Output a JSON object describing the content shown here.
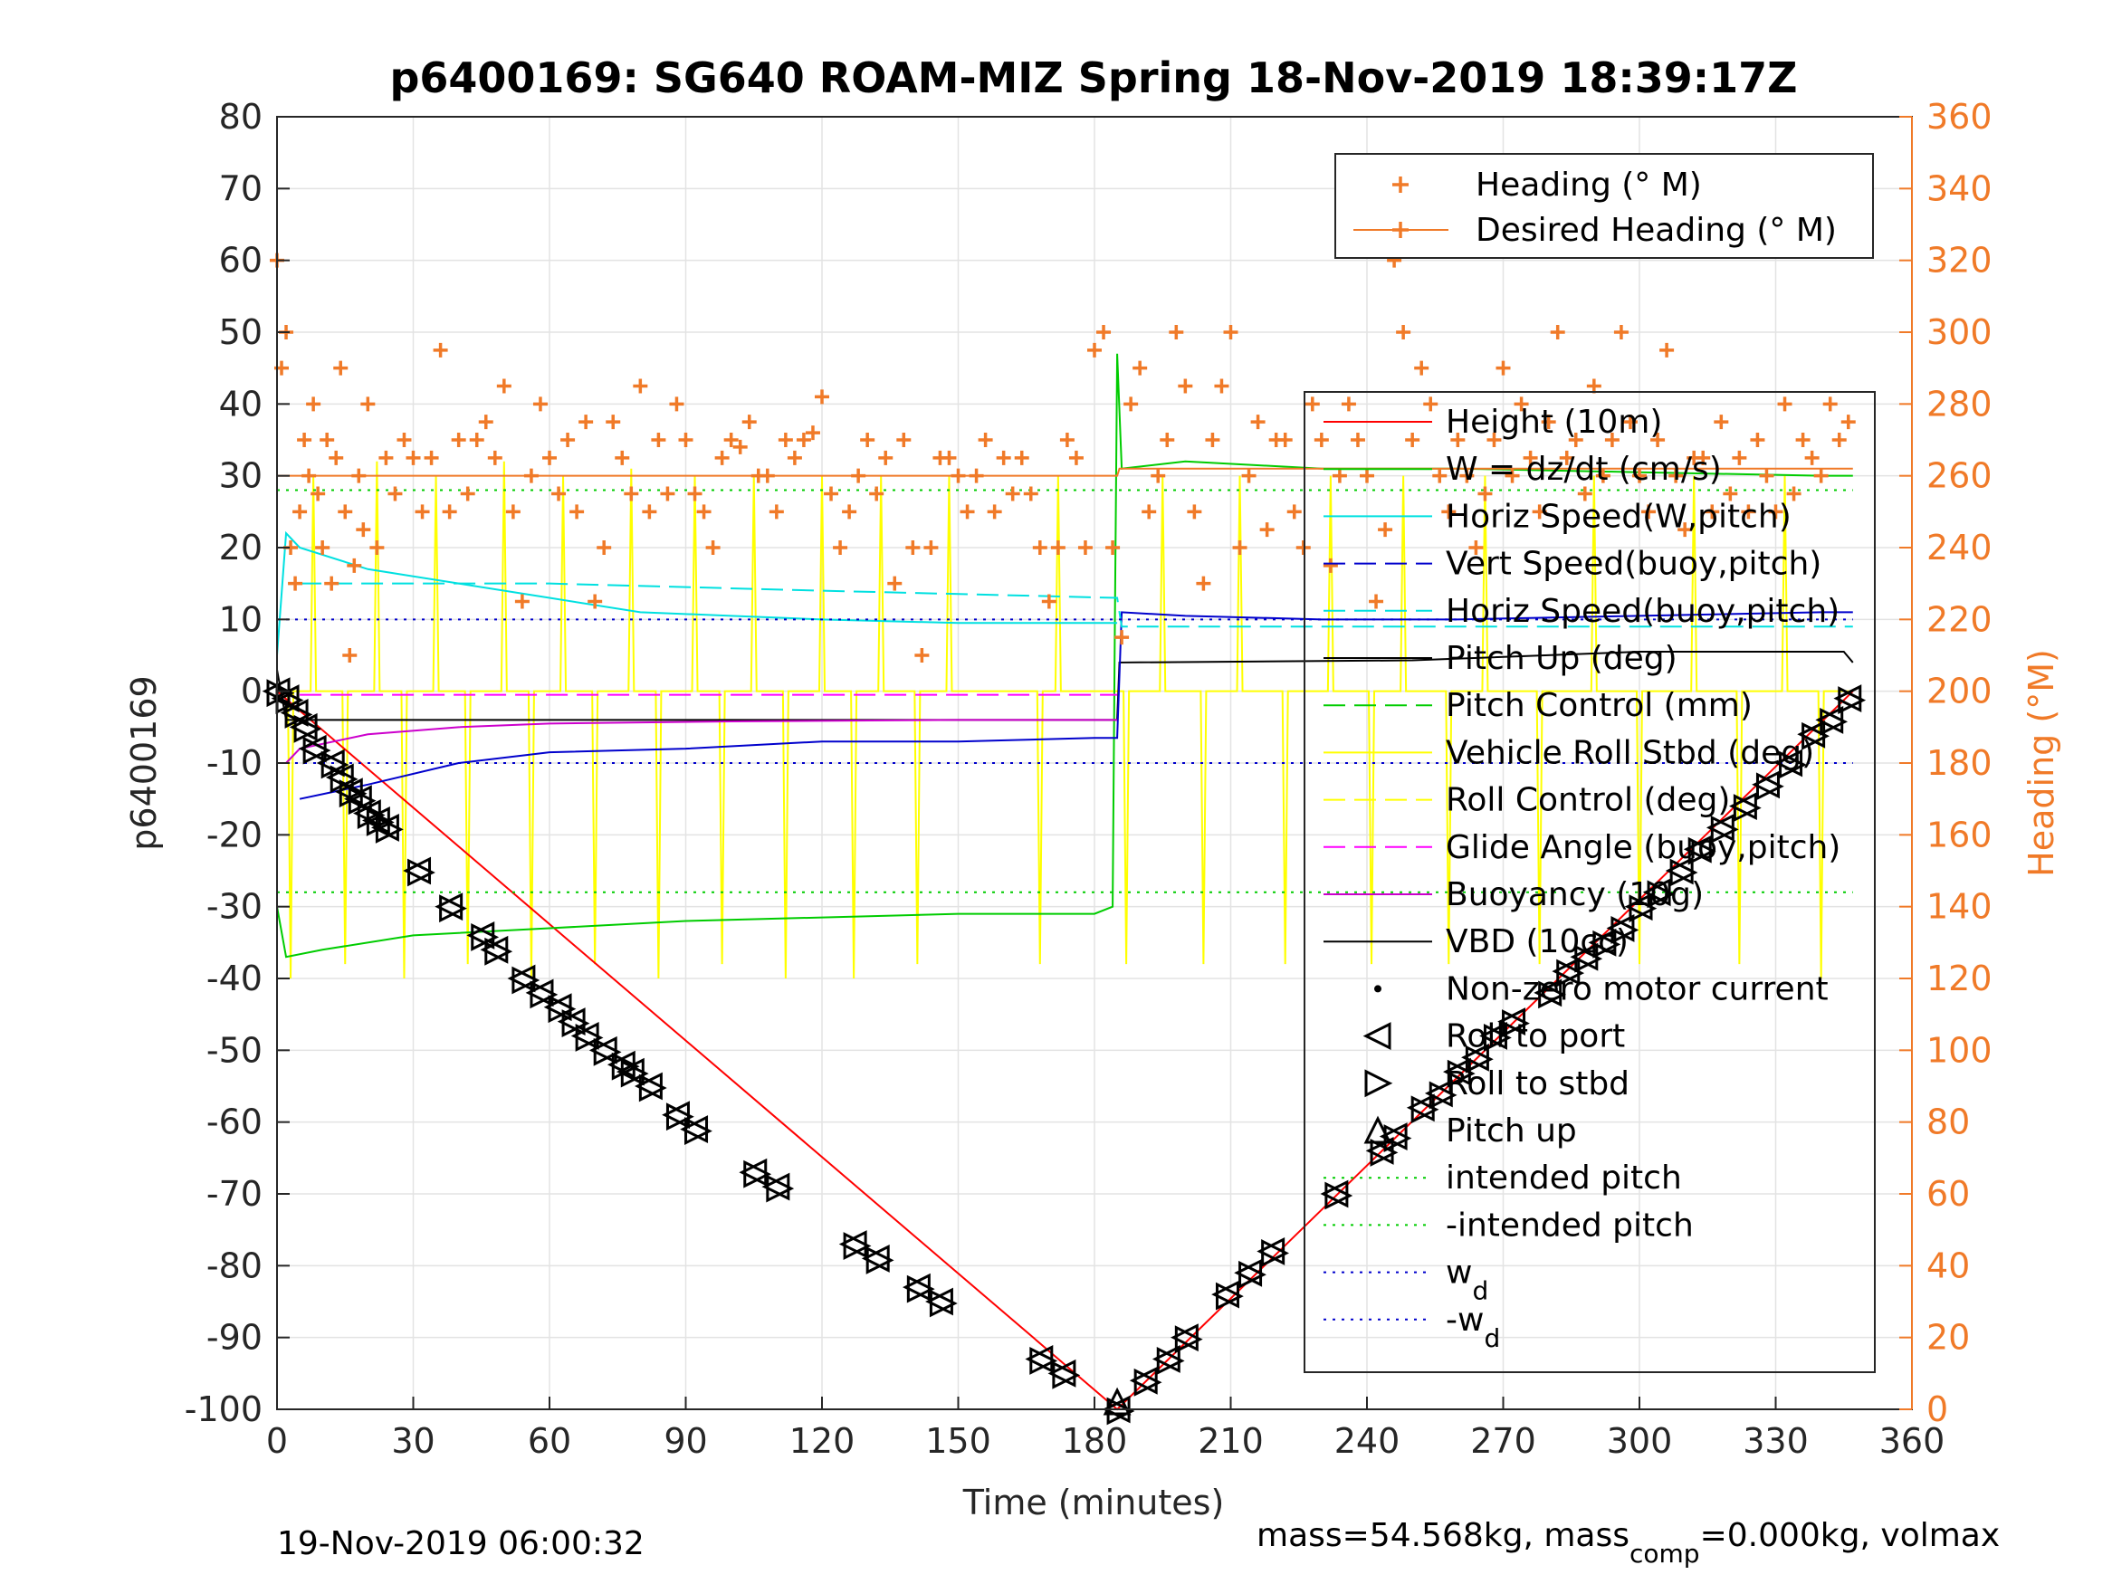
{
  "chart_data": {
    "type": "line",
    "title": "p6400169: SG640 ROAM-MIZ Spring 18-Nov-2019 18:39:17Z",
    "xlabel": "Time (minutes)",
    "ylabel": "p6400169",
    "y2label": "Heading (°M)",
    "xlim": [
      0,
      360
    ],
    "ylim": [
      -100,
      80
    ],
    "y2lim": [
      0,
      360
    ],
    "xticks": [
      0,
      30,
      60,
      90,
      120,
      150,
      180,
      210,
      240,
      270,
      300,
      330,
      360
    ],
    "yticks": [
      -100,
      -90,
      -80,
      -70,
      -60,
      -50,
      -40,
      -30,
      -20,
      -10,
      0,
      10,
      20,
      30,
      40,
      50,
      60,
      70,
      80
    ],
    "y2ticks": [
      0,
      20,
      40,
      60,
      80,
      100,
      120,
      140,
      160,
      180,
      200,
      220,
      240,
      260,
      280,
      300,
      320,
      340,
      360
    ],
    "grid": true,
    "footer_left": "19-Nov-2019 06:00:32",
    "footer_right": "mass=54.568kg, mass",
    "footer_right_sub": "comp",
    "footer_right_tail": "=0.000kg, volmax",
    "legend_heading": [
      {
        "name": "Heading (° M)",
        "color": "#f07a28",
        "style": "marker"
      },
      {
        "name": "Desired Heading (° M)",
        "color": "#f07a28",
        "style": "line-marker"
      }
    ],
    "legend_main": [
      {
        "name": "Height (10m)",
        "color": "#ff0000",
        "style": "solid"
      },
      {
        "name": "W = dz/dt (cm/s)",
        "color": "#00cc00",
        "style": "solid"
      },
      {
        "name": "Horiz Speed(W,pitch)",
        "color": "#00e0e0",
        "style": "solid"
      },
      {
        "name": "Vert Speed(buoy,pitch)",
        "color": "#0000cc",
        "style": "dashed"
      },
      {
        "name": "Horiz Speed(buoy,pitch)",
        "color": "#00e0e0",
        "style": "dashed"
      },
      {
        "name": "Pitch Up (deg)",
        "color": "#000000",
        "style": "solid"
      },
      {
        "name": "Pitch Control (mm)",
        "color": "#00cc00",
        "style": "dashed"
      },
      {
        "name": "Vehicle Roll Stbd (deg)",
        "color": "#ffff00",
        "style": "solid"
      },
      {
        "name": "Roll Control (deg)",
        "color": "#ffff00",
        "style": "dashed"
      },
      {
        "name": "Glide Angle (buoy,pitch)",
        "color": "#ff00ff",
        "style": "dashed"
      },
      {
        "name": "Buoyancy (10g)",
        "color": "#cc00cc",
        "style": "solid"
      },
      {
        "name": "VBD (10cc)",
        "color": "#000000",
        "style": "solid"
      },
      {
        "name": "Non-zero motor current",
        "color": "#000000",
        "style": "dot"
      },
      {
        "name": "Roll to port",
        "color": "#000000",
        "style": "tri-left"
      },
      {
        "name": "Roll to stbd",
        "color": "#000000",
        "style": "tri-right"
      },
      {
        "name": "Pitch up",
        "color": "#000000",
        "style": "tri-up"
      },
      {
        "name": "intended pitch",
        "color": "#00cc00",
        "style": "dotted"
      },
      {
        "name": "-intended pitch",
        "color": "#00cc00",
        "style": "dotted"
      },
      {
        "name": "w",
        "sub": "d",
        "color": "#0000cc",
        "style": "dotted"
      },
      {
        "name": "-w",
        "sub": "d",
        "color": "#0000cc",
        "style": "dotted"
      }
    ],
    "series": [
      {
        "name": "Height (10m)",
        "color": "#ff0000",
        "axis": "left",
        "x": [
          0,
          185,
          347
        ],
        "y": [
          0,
          -100,
          0
        ]
      },
      {
        "name": "Pitch Up (deg)",
        "color": "#000000",
        "axis": "left",
        "x": [
          0,
          2,
          185,
          185.5,
          250,
          300,
          345,
          347
        ],
        "y": [
          3,
          -4,
          -4,
          4,
          4.3,
          5.5,
          5.5,
          4
        ]
      },
      {
        "name": "W = dz/dt (cm/s)",
        "color": "#00cc00",
        "axis": "left",
        "x": [
          0,
          2,
          10,
          30,
          60,
          90,
          120,
          150,
          180,
          184,
          184.5,
          185,
          186,
          200,
          230,
          260,
          300,
          340,
          347
        ],
        "y": [
          -30,
          -37,
          -36,
          -34,
          -33,
          -32,
          -31.5,
          -31,
          -31,
          -30,
          10,
          47,
          31,
          32,
          31,
          31,
          30.5,
          30,
          30
        ]
      },
      {
        "name": "Horiz Speed(W,pitch)",
        "color": "#00e0e0",
        "axis": "left",
        "x": [
          0,
          2,
          5,
          20,
          40,
          60,
          80,
          100,
          120,
          150,
          180,
          185
        ],
        "y": [
          5,
          22,
          20,
          17,
          15,
          13,
          11,
          10.5,
          10,
          9.5,
          9.5,
          9.5
        ]
      },
      {
        "name": "Vert Speed(buoy,pitch)",
        "color": "#0000cc",
        "axis": "left",
        "x": [
          5,
          20,
          40,
          60,
          90,
          120,
          150,
          180,
          185,
          186,
          200,
          230,
          260,
          300,
          340,
          347
        ],
        "y": [
          -15,
          -13,
          -10,
          -8.5,
          -8,
          -7,
          -7,
          -6.5,
          -6.5,
          11,
          10.5,
          10,
          10,
          10.5,
          11,
          11
        ]
      },
      {
        "name": "Horiz Speed(buoy,pitch)",
        "color": "#00e0e0",
        "axis": "left",
        "dash": true,
        "x": [
          5,
          60,
          120,
          185,
          186,
          347
        ],
        "y": [
          15,
          15,
          14,
          13,
          9,
          9
        ]
      },
      {
        "name": "Buoyancy (10g)",
        "color": "#cc00cc",
        "axis": "left",
        "x": [
          2,
          5,
          20,
          40,
          60,
          100,
          150,
          185
        ],
        "y": [
          -10,
          -8,
          -6,
          -5,
          -4.5,
          -4.2,
          -4,
          -4
        ]
      },
      {
        "name": "Glide Angle (buoy,pitch)",
        "color": "#ff00ff",
        "axis": "left",
        "dash": true,
        "x": [
          5,
          185
        ],
        "y": [
          -0.5,
          -0.5
        ]
      },
      {
        "name": "intended pitch",
        "color": "#00cc00",
        "axis": "left",
        "dotted": true,
        "x": [
          0,
          347
        ],
        "y": [
          28,
          28
        ]
      },
      {
        "name": "-intended pitch",
        "color": "#00cc00",
        "axis": "left",
        "dotted": true,
        "x": [
          0,
          347
        ],
        "y": [
          -28,
          -28
        ]
      },
      {
        "name": "w",
        "color": "#0000cc",
        "axis": "left",
        "dotted": true,
        "x": [
          0,
          347
        ],
        "y": [
          10,
          10
        ]
      },
      {
        "name": "-w",
        "color": "#0000cc",
        "axis": "left",
        "dotted": true,
        "x": [
          0,
          347
        ],
        "y": [
          -10,
          -10
        ]
      },
      {
        "name": "Desired Heading (° M)",
        "color": "#f07a28",
        "axis": "right",
        "x": [
          0,
          185,
          185.5,
          347
        ],
        "y": [
          260,
          260,
          262,
          262
        ]
      }
    ],
    "roll_spikes": {
      "color": "#ffff00",
      "base": 0,
      "x": [
        3,
        8,
        15,
        22,
        28,
        35,
        42,
        50,
        56,
        63,
        70,
        78,
        84,
        92,
        98,
        105,
        112,
        120,
        127,
        133,
        141,
        148,
        168,
        172,
        187,
        195,
        204,
        212,
        222,
        232,
        241,
        248,
        258,
        266,
        278,
        290,
        300,
        312,
        322,
        332,
        340
      ],
      "y": [
        -40,
        30,
        -38,
        32,
        -40,
        30,
        -38,
        32,
        -40,
        30,
        -38,
        31,
        -40,
        30,
        -38,
        30,
        -40,
        30,
        -40,
        30,
        -38,
        30,
        -38,
        30,
        -38,
        30,
        -38,
        30,
        -38,
        30,
        -38,
        30,
        -38,
        30,
        -38,
        30,
        -38,
        30,
        -38,
        30,
        -40
      ]
    },
    "heading": {
      "color": "#f07a28",
      "x": [
        0,
        1,
        2,
        3,
        4,
        5,
        6,
        7,
        8,
        9,
        10,
        11,
        12,
        13,
        14,
        15,
        16,
        17,
        18,
        19,
        20,
        22,
        24,
        26,
        28,
        30,
        32,
        34,
        36,
        38,
        40,
        42,
        44,
        46,
        48,
        50,
        52,
        54,
        56,
        58,
        60,
        62,
        64,
        66,
        68,
        70,
        72,
        74,
        76,
        78,
        80,
        82,
        84,
        86,
        88,
        90,
        92,
        94,
        96,
        98,
        100,
        102,
        104,
        106,
        108,
        110,
        112,
        114,
        116,
        118,
        120,
        122,
        124,
        126,
        128,
        130,
        132,
        134,
        136,
        138,
        140,
        142,
        144,
        146,
        148,
        150,
        152,
        154,
        156,
        158,
        160,
        162,
        164,
        166,
        168,
        170,
        172,
        174,
        176,
        178,
        180,
        182,
        184,
        186,
        188,
        190,
        192,
        194,
        196,
        198,
        200,
        202,
        204,
        206,
        208,
        210,
        212,
        214,
        216,
        218,
        220,
        222,
        224,
        226,
        228,
        230,
        232,
        234,
        236,
        238,
        240,
        242,
        244,
        246,
        248,
        250,
        252,
        254,
        256,
        258,
        260,
        262,
        264,
        266,
        268,
        270,
        272,
        274,
        276,
        278,
        280,
        282,
        284,
        286,
        288,
        290,
        292,
        294,
        296,
        298,
        300,
        302,
        304,
        306,
        308,
        310,
        312,
        314,
        316,
        318,
        320,
        322,
        324,
        326,
        328,
        330,
        332,
        334,
        336,
        338,
        340,
        342,
        344,
        346
      ],
      "y": [
        320,
        290,
        300,
        240,
        230,
        250,
        270,
        260,
        280,
        255,
        240,
        270,
        230,
        265,
        290,
        250,
        210,
        235,
        260,
        245,
        280,
        240,
        265,
        255,
        270,
        265,
        250,
        265,
        295,
        250,
        270,
        255,
        270,
        275,
        265,
        285,
        250,
        225,
        260,
        280,
        265,
        255,
        270,
        250,
        275,
        225,
        240,
        275,
        265,
        255,
        285,
        250,
        270,
        255,
        280,
        270,
        255,
        250,
        240,
        265,
        270,
        268,
        275,
        260,
        260,
        250,
        270,
        265,
        270,
        272,
        282,
        255,
        240,
        250,
        260,
        270,
        255,
        265,
        230,
        270,
        240,
        210,
        240,
        265,
        265,
        260,
        250,
        260,
        270,
        250,
        265,
        255,
        265,
        255,
        240,
        225,
        240,
        270,
        265,
        240,
        295,
        300,
        240,
        215,
        280,
        290,
        250,
        260,
        270,
        300,
        285,
        250,
        230,
        270,
        285,
        300,
        240,
        260,
        275,
        245,
        270,
        270,
        250,
        240,
        280,
        270,
        235,
        260,
        280,
        270,
        260,
        225,
        245,
        320,
        300,
        270,
        290,
        280,
        260,
        250,
        270,
        260,
        240,
        255,
        270,
        290,
        260,
        280,
        265,
        250,
        275,
        300,
        265,
        270,
        255,
        285,
        260,
        270,
        300,
        275,
        260,
        250,
        270,
        295,
        260,
        245,
        265,
        265,
        250,
        275,
        255,
        265,
        250,
        270,
        260,
        250,
        280,
        255,
        270,
        265,
        260,
        280,
        270,
        275
      ]
    },
    "markers_descent": {
      "x": [
        0,
        2,
        4,
        6,
        8,
        12,
        14,
        16,
        18,
        20,
        22,
        24,
        31,
        38,
        45,
        48,
        54,
        58,
        62,
        65,
        68,
        72,
        76,
        78,
        82,
        88,
        92,
        105,
        110,
        127,
        132,
        141,
        146,
        168,
        173
      ],
      "y": [
        0,
        -1,
        -3,
        -5,
        -8,
        -10,
        -12,
        -14,
        -15,
        -17,
        -18,
        -19,
        -25,
        -30,
        -34,
        -36,
        -40,
        -42,
        -44,
        -46,
        -48,
        -50,
        -52,
        -53,
        -55,
        -59,
        -61,
        -67,
        -69,
        -77,
        -79,
        -83,
        -85,
        -93,
        -95
      ]
    },
    "markers_ascent": {
      "x": [
        185,
        191,
        196,
        200,
        209,
        214,
        219,
        233,
        243,
        246,
        252,
        256,
        260,
        264,
        268,
        272,
        280,
        284,
        288,
        292,
        296,
        300,
        304,
        309,
        313,
        318,
        323,
        328,
        333,
        338,
        342,
        346
      ],
      "y": [
        -100,
        -96,
        -93,
        -90,
        -84,
        -81,
        -78,
        -70,
        -64,
        -62,
        -58,
        -56,
        -53,
        -51,
        -48,
        -46,
        -42,
        -39,
        -37,
        -35,
        -33,
        -30,
        -28,
        -25,
        -22,
        -19,
        -16,
        -13,
        -10,
        -6,
        -4,
        -1
      ]
    }
  }
}
